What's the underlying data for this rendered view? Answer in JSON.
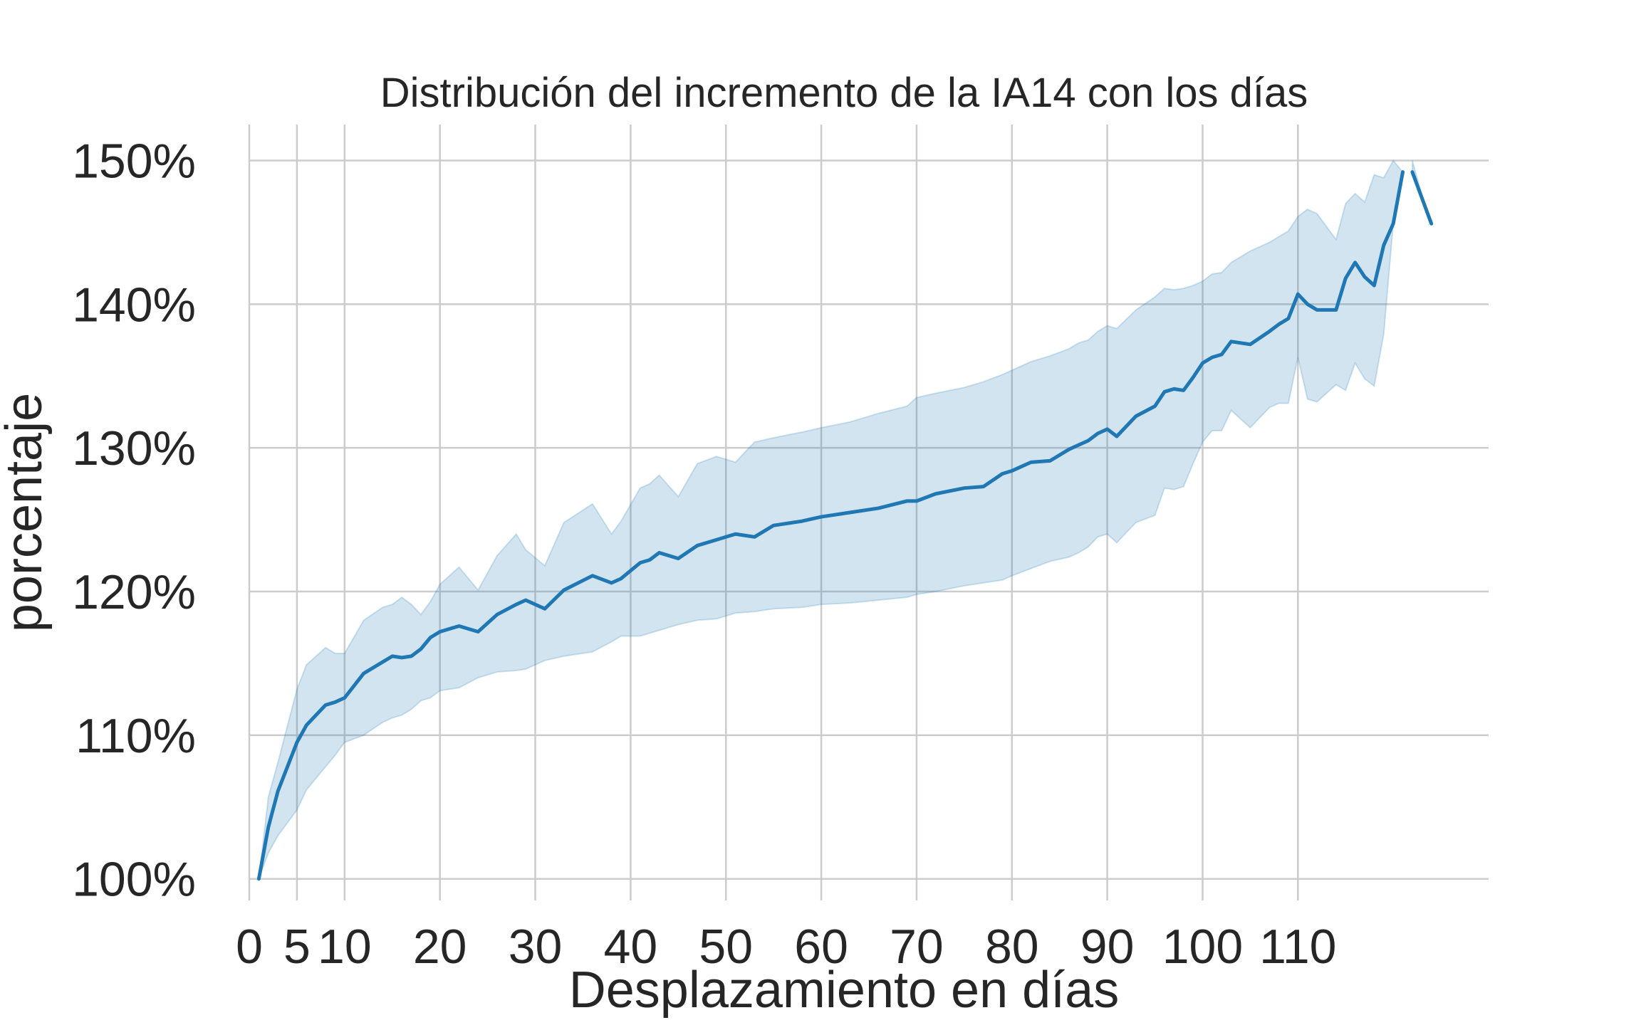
{
  "chart_data": {
    "type": "line",
    "title": "Distribución del incremento de la IA14 con los días",
    "xlabel": "Desplazamiento en días",
    "ylabel": "porcentaje",
    "xlim": [
      0,
      130
    ],
    "ylim": [
      0.985,
      1.525
    ],
    "x_ticks": [
      0,
      5,
      10,
      20,
      30,
      40,
      50,
      60,
      70,
      80,
      90,
      100,
      110
    ],
    "x_tick_labels": [
      "0",
      "5",
      "10",
      "20",
      "30",
      "40",
      "50",
      "60",
      "70",
      "80",
      "90",
      "100",
      "110"
    ],
    "y_ticks": [
      1.0,
      1.1,
      1.2,
      1.3,
      1.4,
      1.5
    ],
    "y_tick_labels": [
      "100%",
      "110%",
      "120%",
      "130%",
      "140%",
      "150%"
    ],
    "grid": true,
    "legend": "none",
    "colors": {
      "line": "#1f77b4",
      "band": "#1f77b4",
      "grid": "#cccccc",
      "text": "#262626"
    },
    "series": [
      {
        "x": [
          1,
          2,
          3,
          5,
          6,
          8,
          9,
          10,
          12,
          14,
          15,
          16,
          17,
          18,
          19,
          20,
          22,
          24,
          26,
          28,
          29,
          31,
          33,
          36,
          38,
          39,
          41,
          42,
          43,
          45,
          47,
          49,
          51,
          53,
          55,
          58,
          60,
          63,
          66,
          69,
          70,
          72,
          75,
          77,
          79,
          80,
          82,
          84,
          86,
          87,
          88,
          89,
          90,
          91,
          93,
          95,
          96,
          97,
          98,
          99,
          100,
          101,
          102,
          103,
          105,
          107,
          108,
          109,
          110,
          111,
          112,
          114,
          115,
          116,
          117,
          118,
          119,
          120,
          121
        ],
        "y": [
          1.0,
          1.036,
          1.061,
          1.095,
          1.107,
          1.121,
          1.123,
          1.126,
          1.143,
          1.151,
          1.155,
          1.154,
          1.155,
          1.16,
          1.168,
          1.172,
          1.176,
          1.172,
          1.184,
          1.191,
          1.194,
          1.188,
          1.201,
          1.211,
          1.206,
          1.209,
          1.22,
          1.222,
          1.227,
          1.223,
          1.232,
          1.236,
          1.24,
          1.238,
          1.246,
          1.249,
          1.252,
          1.255,
          1.258,
          1.263,
          1.263,
          1.268,
          1.272,
          1.273,
          1.282,
          1.284,
          1.29,
          1.291,
          1.299,
          1.302,
          1.305,
          1.31,
          1.313,
          1.308,
          1.322,
          1.329,
          1.339,
          1.341,
          1.34,
          1.349,
          1.359,
          1.363,
          1.365,
          1.374,
          1.372,
          1.381,
          1.386,
          1.39,
          1.407,
          1.4,
          1.396,
          1.396,
          1.418,
          1.429,
          1.419,
          1.413,
          1.441,
          1.456,
          1.492
        ],
        "lower": [
          1.0,
          1.018,
          1.03,
          1.048,
          1.062,
          1.078,
          1.086,
          1.095,
          1.1,
          1.109,
          1.112,
          1.114,
          1.118,
          1.124,
          1.126,
          1.131,
          1.133,
          1.14,
          1.144,
          1.145,
          1.146,
          1.152,
          1.155,
          1.158,
          1.165,
          1.169,
          1.169,
          1.171,
          1.173,
          1.177,
          1.18,
          1.181,
          1.185,
          1.186,
          1.188,
          1.189,
          1.191,
          1.192,
          1.194,
          1.196,
          1.198,
          1.2,
          1.204,
          1.206,
          1.208,
          1.211,
          1.216,
          1.221,
          1.224,
          1.227,
          1.231,
          1.238,
          1.24,
          1.234,
          1.248,
          1.253,
          1.272,
          1.271,
          1.273,
          1.289,
          1.304,
          1.312,
          1.312,
          1.326,
          1.314,
          1.328,
          1.331,
          1.331,
          1.363,
          1.334,
          1.332,
          1.344,
          1.34,
          1.359,
          1.348,
          1.343,
          1.379,
          1.456,
          1.492
        ],
        "upper": [
          1.0,
          1.057,
          1.081,
          1.132,
          1.149,
          1.161,
          1.157,
          1.157,
          1.18,
          1.189,
          1.191,
          1.196,
          1.191,
          1.184,
          1.193,
          1.205,
          1.217,
          1.201,
          1.225,
          1.24,
          1.229,
          1.218,
          1.248,
          1.261,
          1.24,
          1.249,
          1.272,
          1.275,
          1.281,
          1.266,
          1.289,
          1.294,
          1.29,
          1.304,
          1.307,
          1.311,
          1.314,
          1.318,
          1.324,
          1.329,
          1.335,
          1.338,
          1.342,
          1.346,
          1.351,
          1.354,
          1.36,
          1.364,
          1.369,
          1.373,
          1.375,
          1.381,
          1.385,
          1.383,
          1.396,
          1.405,
          1.411,
          1.41,
          1.411,
          1.413,
          1.416,
          1.421,
          1.422,
          1.429,
          1.437,
          1.443,
          1.447,
          1.451,
          1.461,
          1.466,
          1.463,
          1.445,
          1.47,
          1.477,
          1.471,
          1.49,
          1.488,
          1.5,
          1.492
        ]
      },
      {
        "x": [
          122,
          123,
          124
        ],
        "y": [
          1.492,
          1.474,
          1.456
        ],
        "lower": [
          1.492,
          1.472,
          1.456
        ],
        "upper": [
          1.5,
          1.476,
          1.456
        ]
      }
    ]
  }
}
